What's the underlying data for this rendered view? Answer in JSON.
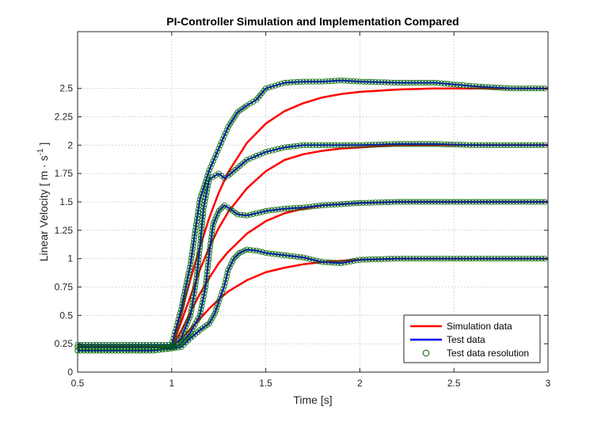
{
  "chart_data": {
    "type": "line",
    "title": "PI-Controller Simulation and Implementation Compared",
    "xlabel": "Time [s]",
    "ylabel_main": "Linear Velocity [ m · s",
    "ylabel_sup": "-1",
    "ylabel_close": " ]",
    "xlim": [
      0.5,
      3
    ],
    "ylim": [
      0,
      3.0
    ],
    "xticks": [
      0.5,
      1,
      1.5,
      2,
      2.5,
      3
    ],
    "xtick_labels": [
      "0.5",
      "1",
      "1.5",
      "2",
      "2.5",
      "3"
    ],
    "yticks": [
      0,
      0.25,
      0.5,
      0.75,
      1,
      1.25,
      1.5,
      1.75,
      2,
      2.25,
      2.5
    ],
    "ytick_labels": [
      "0",
      "0.25",
      "0.5",
      "0.75",
      "1",
      "1.25",
      "1.5",
      "1.75",
      "2",
      "2.25",
      "2.5"
    ],
    "grid": true,
    "legend_position": "bottom-right",
    "legend": [
      "Simulation data",
      "Test data",
      "Test data resolution"
    ],
    "colors": {
      "simulation": "#ff0000",
      "test": "#0000ff",
      "marker_edge": "#006400",
      "grid": "#bfbfbf",
      "axis": "#262626"
    },
    "series": [
      {
        "name": "Simulation data",
        "color": "#ff0000",
        "curves": [
          {
            "x": [
              0.5,
              1.0,
              1.05,
              1.1,
              1.15,
              1.2,
              1.25,
              1.3,
              1.4,
              1.5,
              1.6,
              1.7,
              1.8,
              1.9,
              2.0,
              2.2,
              2.4,
              2.6,
              2.8,
              3.0
            ],
            "y": [
              0.22,
              0.22,
              0.29,
              0.38,
              0.47,
              0.56,
              0.64,
              0.71,
              0.81,
              0.88,
              0.92,
              0.95,
              0.97,
              0.98,
              0.99,
              1.0,
              1.0,
              1.0,
              1.0,
              1.0
            ]
          },
          {
            "x": [
              0.5,
              1.0,
              1.05,
              1.1,
              1.15,
              1.2,
              1.25,
              1.3,
              1.4,
              1.5,
              1.6,
              1.7,
              1.8,
              1.9,
              2.0,
              2.2,
              2.4,
              2.6,
              2.8,
              3.0
            ],
            "y": [
              0.22,
              0.22,
              0.36,
              0.53,
              0.69,
              0.83,
              0.96,
              1.06,
              1.22,
              1.33,
              1.4,
              1.44,
              1.47,
              1.48,
              1.49,
              1.5,
              1.5,
              1.5,
              1.5,
              1.5
            ]
          },
          {
            "x": [
              0.5,
              1.0,
              1.05,
              1.1,
              1.15,
              1.2,
              1.25,
              1.3,
              1.4,
              1.5,
              1.6,
              1.7,
              1.8,
              1.9,
              2.0,
              2.2,
              2.4,
              2.6,
              2.8,
              3.0
            ],
            "y": [
              0.22,
              0.22,
              0.44,
              0.67,
              0.9,
              1.1,
              1.27,
              1.41,
              1.62,
              1.77,
              1.87,
              1.92,
              1.95,
              1.97,
              1.98,
              2.0,
              2.0,
              2.0,
              2.0,
              2.0
            ]
          },
          {
            "x": [
              0.5,
              1.0,
              1.05,
              1.1,
              1.15,
              1.2,
              1.25,
              1.3,
              1.4,
              1.5,
              1.6,
              1.7,
              1.8,
              1.9,
              2.0,
              2.2,
              2.4,
              2.6,
              2.8,
              3.0
            ],
            "y": [
              0.22,
              0.22,
              0.52,
              0.82,
              1.1,
              1.36,
              1.58,
              1.76,
              2.02,
              2.19,
              2.3,
              2.37,
              2.42,
              2.45,
              2.47,
              2.49,
              2.5,
              2.5,
              2.5,
              2.5
            ]
          }
        ]
      },
      {
        "name": "Test data",
        "color": "#0000ff",
        "curves": [
          {
            "x": [
              0.5,
              0.7,
              0.9,
              1.0,
              1.05,
              1.1,
              1.15,
              1.2,
              1.23,
              1.25,
              1.28,
              1.3,
              1.33,
              1.36,
              1.4,
              1.45,
              1.5,
              1.6,
              1.7,
              1.8,
              1.9,
              2.0,
              2.2,
              2.4,
              2.6,
              2.8,
              3.0
            ],
            "y": [
              0.19,
              0.19,
              0.19,
              0.21,
              0.22,
              0.3,
              0.37,
              0.43,
              0.52,
              0.62,
              0.76,
              0.9,
              1.0,
              1.05,
              1.08,
              1.07,
              1.05,
              1.03,
              1.01,
              0.97,
              0.96,
              0.99,
              1.0,
              1.0,
              1.0,
              1.0,
              1.0
            ]
          },
          {
            "x": [
              0.5,
              0.7,
              0.9,
              1.0,
              1.05,
              1.1,
              1.15,
              1.18,
              1.2,
              1.22,
              1.25,
              1.28,
              1.3,
              1.35,
              1.4,
              1.45,
              1.5,
              1.6,
              1.7,
              1.8,
              1.9,
              2.0,
              2.2,
              2.4,
              2.6,
              2.8,
              3.0
            ],
            "y": [
              0.19,
              0.19,
              0.19,
              0.21,
              0.25,
              0.35,
              0.5,
              0.75,
              1.05,
              1.3,
              1.42,
              1.47,
              1.45,
              1.39,
              1.38,
              1.4,
              1.42,
              1.44,
              1.45,
              1.47,
              1.48,
              1.49,
              1.5,
              1.5,
              1.5,
              1.5,
              1.5
            ]
          },
          {
            "x": [
              0.5,
              0.7,
              0.9,
              1.0,
              1.05,
              1.1,
              1.13,
              1.15,
              1.17,
              1.2,
              1.25,
              1.28,
              1.3,
              1.35,
              1.4,
              1.5,
              1.6,
              1.7,
              1.8,
              1.9,
              2.0,
              2.2,
              2.4,
              2.6,
              2.8,
              3.0
            ],
            "y": [
              0.22,
              0.22,
              0.22,
              0.22,
              0.3,
              0.5,
              0.8,
              1.1,
              1.45,
              1.7,
              1.75,
              1.71,
              1.73,
              1.8,
              1.87,
              1.94,
              1.98,
              2.0,
              2.0,
              2.0,
              2.0,
              2.01,
              2.01,
              2.0,
              2.0,
              2.0
            ]
          },
          {
            "x": [
              0.5,
              0.7,
              0.9,
              1.0,
              1.05,
              1.1,
              1.13,
              1.15,
              1.2,
              1.25,
              1.3,
              1.35,
              1.4,
              1.45,
              1.5,
              1.6,
              1.7,
              1.8,
              1.9,
              2.0,
              2.2,
              2.4,
              2.6,
              2.8,
              3.0
            ],
            "y": [
              0.24,
              0.24,
              0.24,
              0.24,
              0.55,
              0.95,
              1.3,
              1.52,
              1.78,
              1.97,
              2.16,
              2.29,
              2.35,
              2.4,
              2.5,
              2.55,
              2.56,
              2.56,
              2.57,
              2.56,
              2.55,
              2.55,
              2.52,
              2.5,
              2.5
            ]
          }
        ]
      },
      {
        "name": "Test data resolution",
        "marker": "circle",
        "edge_color": "#006400",
        "note": "markers drawn at sampled points of each test data curve"
      }
    ]
  }
}
